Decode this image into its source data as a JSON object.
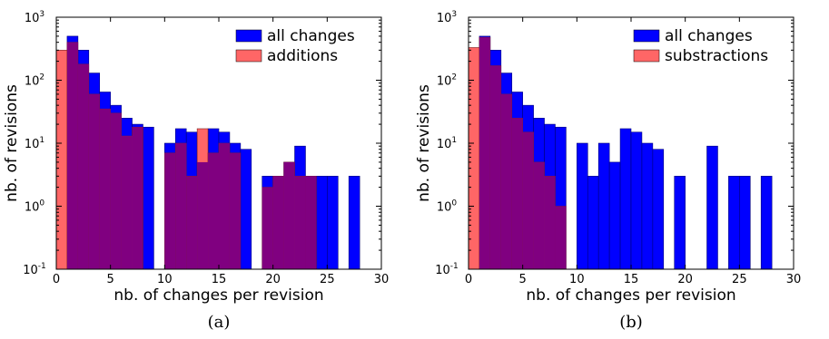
{
  "colors": {
    "all": "#0000ff",
    "sub": "#ff6666",
    "overlap": "#800080",
    "frame": "#000000"
  },
  "chart_data": [
    {
      "type": "bar",
      "scale_y": "log",
      "xlim": [
        0,
        30
      ],
      "ylim": [
        0.1,
        1000
      ],
      "xticks": [
        "0",
        "5",
        "10",
        "15",
        "20",
        "25",
        "30"
      ],
      "yticks": [
        {
          "base": "10",
          "exp": "-1"
        },
        {
          "base": "10",
          "exp": "0"
        },
        {
          "base": "10",
          "exp": "1"
        },
        {
          "base": "10",
          "exp": "2"
        },
        {
          "base": "10",
          "exp": "3"
        }
      ],
      "xlabel": "nb. of changes per revision",
      "ylabel": "nb. of revisions",
      "caption": "(a)",
      "legend_position": "top-right",
      "bin_width": 1,
      "series": [
        {
          "name": "all changes",
          "color_key": "all",
          "bins": [
            [
              1,
              500
            ],
            [
              2,
              300
            ],
            [
              3,
              130
            ],
            [
              4,
              65
            ],
            [
              5,
              40
            ],
            [
              6,
              25
            ],
            [
              7,
              20
            ],
            [
              8,
              18
            ],
            [
              10,
              10
            ],
            [
              11,
              17
            ],
            [
              12,
              15
            ],
            [
              13,
              5
            ],
            [
              14,
              17
            ],
            [
              15,
              15
            ],
            [
              16,
              10
            ],
            [
              17,
              8
            ],
            [
              19,
              3
            ],
            [
              20,
              3
            ],
            [
              21,
              5
            ],
            [
              22,
              9
            ],
            [
              23,
              3
            ],
            [
              24,
              3
            ],
            [
              25,
              3
            ],
            [
              27,
              3
            ]
          ]
        },
        {
          "name": "additions",
          "color_key": "sub",
          "bins": [
            [
              0,
              300
            ],
            [
              1,
              400
            ],
            [
              2,
              180
            ],
            [
              3,
              60
            ],
            [
              4,
              35
            ],
            [
              5,
              30
            ],
            [
              6,
              13
            ],
            [
              7,
              18
            ],
            [
              10,
              7
            ],
            [
              11,
              10
            ],
            [
              12,
              3
            ],
            [
              13,
              17
            ],
            [
              14,
              7
            ],
            [
              15,
              10
            ],
            [
              16,
              7
            ],
            [
              19,
              2
            ],
            [
              20,
              3
            ],
            [
              21,
              5
            ],
            [
              22,
              3
            ],
            [
              23,
              3
            ]
          ]
        }
      ]
    },
    {
      "type": "bar",
      "scale_y": "log",
      "xlim": [
        0,
        30
      ],
      "ylim": [
        0.1,
        1000
      ],
      "xticks": [
        "0",
        "5",
        "10",
        "15",
        "20",
        "25",
        "30"
      ],
      "yticks": [
        {
          "base": "10",
          "exp": "-1"
        },
        {
          "base": "10",
          "exp": "0"
        },
        {
          "base": "10",
          "exp": "1"
        },
        {
          "base": "10",
          "exp": "2"
        },
        {
          "base": "10",
          "exp": "3"
        }
      ],
      "xlabel": "nb. of changes per revision",
      "ylabel": "nb. of revisions",
      "caption": "(b)",
      "legend_position": "top-right",
      "bin_width": 1,
      "series": [
        {
          "name": "all changes",
          "color_key": "all",
          "bins": [
            [
              1,
              500
            ],
            [
              2,
              300
            ],
            [
              3,
              130
            ],
            [
              4,
              65
            ],
            [
              5,
              40
            ],
            [
              6,
              25
            ],
            [
              7,
              20
            ],
            [
              8,
              18
            ],
            [
              10,
              10
            ],
            [
              11,
              3
            ],
            [
              12,
              10
            ],
            [
              13,
              5
            ],
            [
              14,
              17
            ],
            [
              15,
              15
            ],
            [
              16,
              10
            ],
            [
              17,
              8
            ],
            [
              19,
              3
            ],
            [
              22,
              9
            ],
            [
              24,
              3
            ],
            [
              25,
              3
            ],
            [
              27,
              3
            ]
          ]
        },
        {
          "name": "substractions",
          "color_key": "sub",
          "bins": [
            [
              0,
              330
            ],
            [
              1,
              480
            ],
            [
              2,
              170
            ],
            [
              3,
              60
            ],
            [
              4,
              25
            ],
            [
              5,
              15
            ],
            [
              6,
              5
            ],
            [
              7,
              3
            ],
            [
              8,
              1
            ]
          ]
        }
      ]
    }
  ]
}
